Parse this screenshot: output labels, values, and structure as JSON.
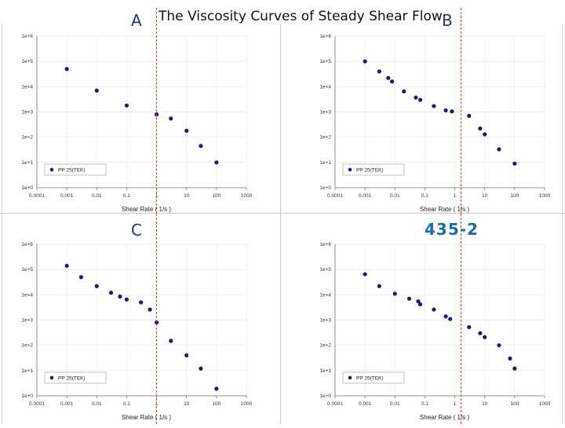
{
  "header": {
    "title": "The Viscosity Curves of Steady Shear Flow"
  },
  "colors": {
    "marker": "#1a1a7a",
    "ref_line": "#d23a2a",
    "label": "#1f3b73",
    "label_435": "#1a6fa8"
  },
  "chart_data": [
    {
      "type": "scatter",
      "panel_label": "A",
      "xlabel": "Shear Rate ( 1/s )",
      "x_log": true,
      "y_log": true,
      "xlim": [
        0.0001,
        1000
      ],
      "ylim": [
        1,
        1000000
      ],
      "x_ticks": [
        "0.0001",
        "0.001",
        "0.01",
        "0.1",
        "1",
        "10",
        "100",
        "1000"
      ],
      "y_ticks": [
        "1e+0",
        "1e+1",
        "1e+2",
        "1e+3",
        "1e+4",
        "1e+5",
        "1e+6"
      ],
      "legend_position": "bottom-left",
      "reference_x": 1,
      "series": [
        {
          "name": "PP 25(TEK)",
          "x": [
            0.001,
            0.01,
            0.1,
            1,
            3,
            10,
            30,
            100
          ],
          "y": [
            50000,
            7000,
            1800,
            800,
            550,
            180,
            45,
            10
          ]
        }
      ]
    },
    {
      "type": "scatter",
      "panel_label": "B",
      "xlabel": "Shear Rate ( 1/s )",
      "x_log": true,
      "y_log": true,
      "xlim": [
        0.0001,
        1000
      ],
      "ylim": [
        1,
        1000000
      ],
      "x_ticks": [
        "0.0001",
        "0.001",
        "0.01",
        "0.1",
        "1",
        "10",
        "100",
        "1000"
      ],
      "y_ticks": [
        "1e+0",
        "1e+1",
        "1e+2",
        "1e+3",
        "1e+4",
        "1e+5",
        "1e+6"
      ],
      "legend_position": "bottom-left",
      "reference_x": 1,
      "series": [
        {
          "name": "PP 25(TEK)",
          "x": [
            0.001,
            0.003,
            0.006,
            0.008,
            0.02,
            0.05,
            0.07,
            0.2,
            0.5,
            0.8,
            3,
            7,
            10,
            30,
            100
          ],
          "y": [
            100000,
            40000,
            22000,
            16000,
            6500,
            3700,
            3000,
            1700,
            1150,
            1050,
            700,
            220,
            130,
            33,
            9
          ]
        }
      ]
    },
    {
      "type": "scatter",
      "panel_label": "C",
      "xlabel": "Shear Rate ( 1/s )",
      "x_log": true,
      "y_log": true,
      "xlim": [
        0.0001,
        1000
      ],
      "ylim": [
        1,
        1000000
      ],
      "x_ticks": [
        "0.0001",
        "0.001",
        "0.01",
        "0.1",
        "1",
        "10",
        "100",
        "1000"
      ],
      "y_ticks": [
        "1e+0",
        "1e+1",
        "1e+2",
        "1e+3",
        "1e+4",
        "1e+5",
        "1e+6"
      ],
      "legend_position": "bottom-left",
      "reference_x": 1,
      "series": [
        {
          "name": "PP 25(TEK)",
          "x": [
            0.001,
            0.003,
            0.01,
            0.03,
            0.06,
            0.1,
            0.3,
            0.6,
            1,
            3,
            10,
            30,
            100
          ],
          "y": [
            140000,
            50000,
            22000,
            12000,
            8500,
            6500,
            5000,
            2600,
            800,
            150,
            40,
            12,
            1.9
          ]
        }
      ]
    },
    {
      "type": "scatter",
      "panel_label": "435-2",
      "xlabel": "Shear Rate ( 1/s )",
      "x_log": true,
      "y_log": true,
      "xlim": [
        0.0001,
        1000
      ],
      "ylim": [
        1,
        1000000
      ],
      "x_ticks": [
        "0.0001",
        "0.001",
        "0.01",
        "0.1",
        "1",
        "10",
        "100",
        "1000"
      ],
      "y_ticks": [
        "1e+0",
        "1e+1",
        "1e+2",
        "1e+3",
        "1e+4",
        "1e+5",
        "1e+6"
      ],
      "legend_position": "bottom-left",
      "reference_x": 1,
      "series": [
        {
          "name": "PP 25(TEK)",
          "x": [
            0.001,
            0.003,
            0.01,
            0.03,
            0.06,
            0.07,
            0.2,
            0.5,
            0.7,
            3,
            7,
            10,
            30,
            70,
            100
          ],
          "y": [
            65000,
            22000,
            11000,
            7000,
            5500,
            4200,
            2600,
            1400,
            1100,
            520,
            300,
            210,
            100,
            30,
            12
          ]
        }
      ]
    }
  ]
}
